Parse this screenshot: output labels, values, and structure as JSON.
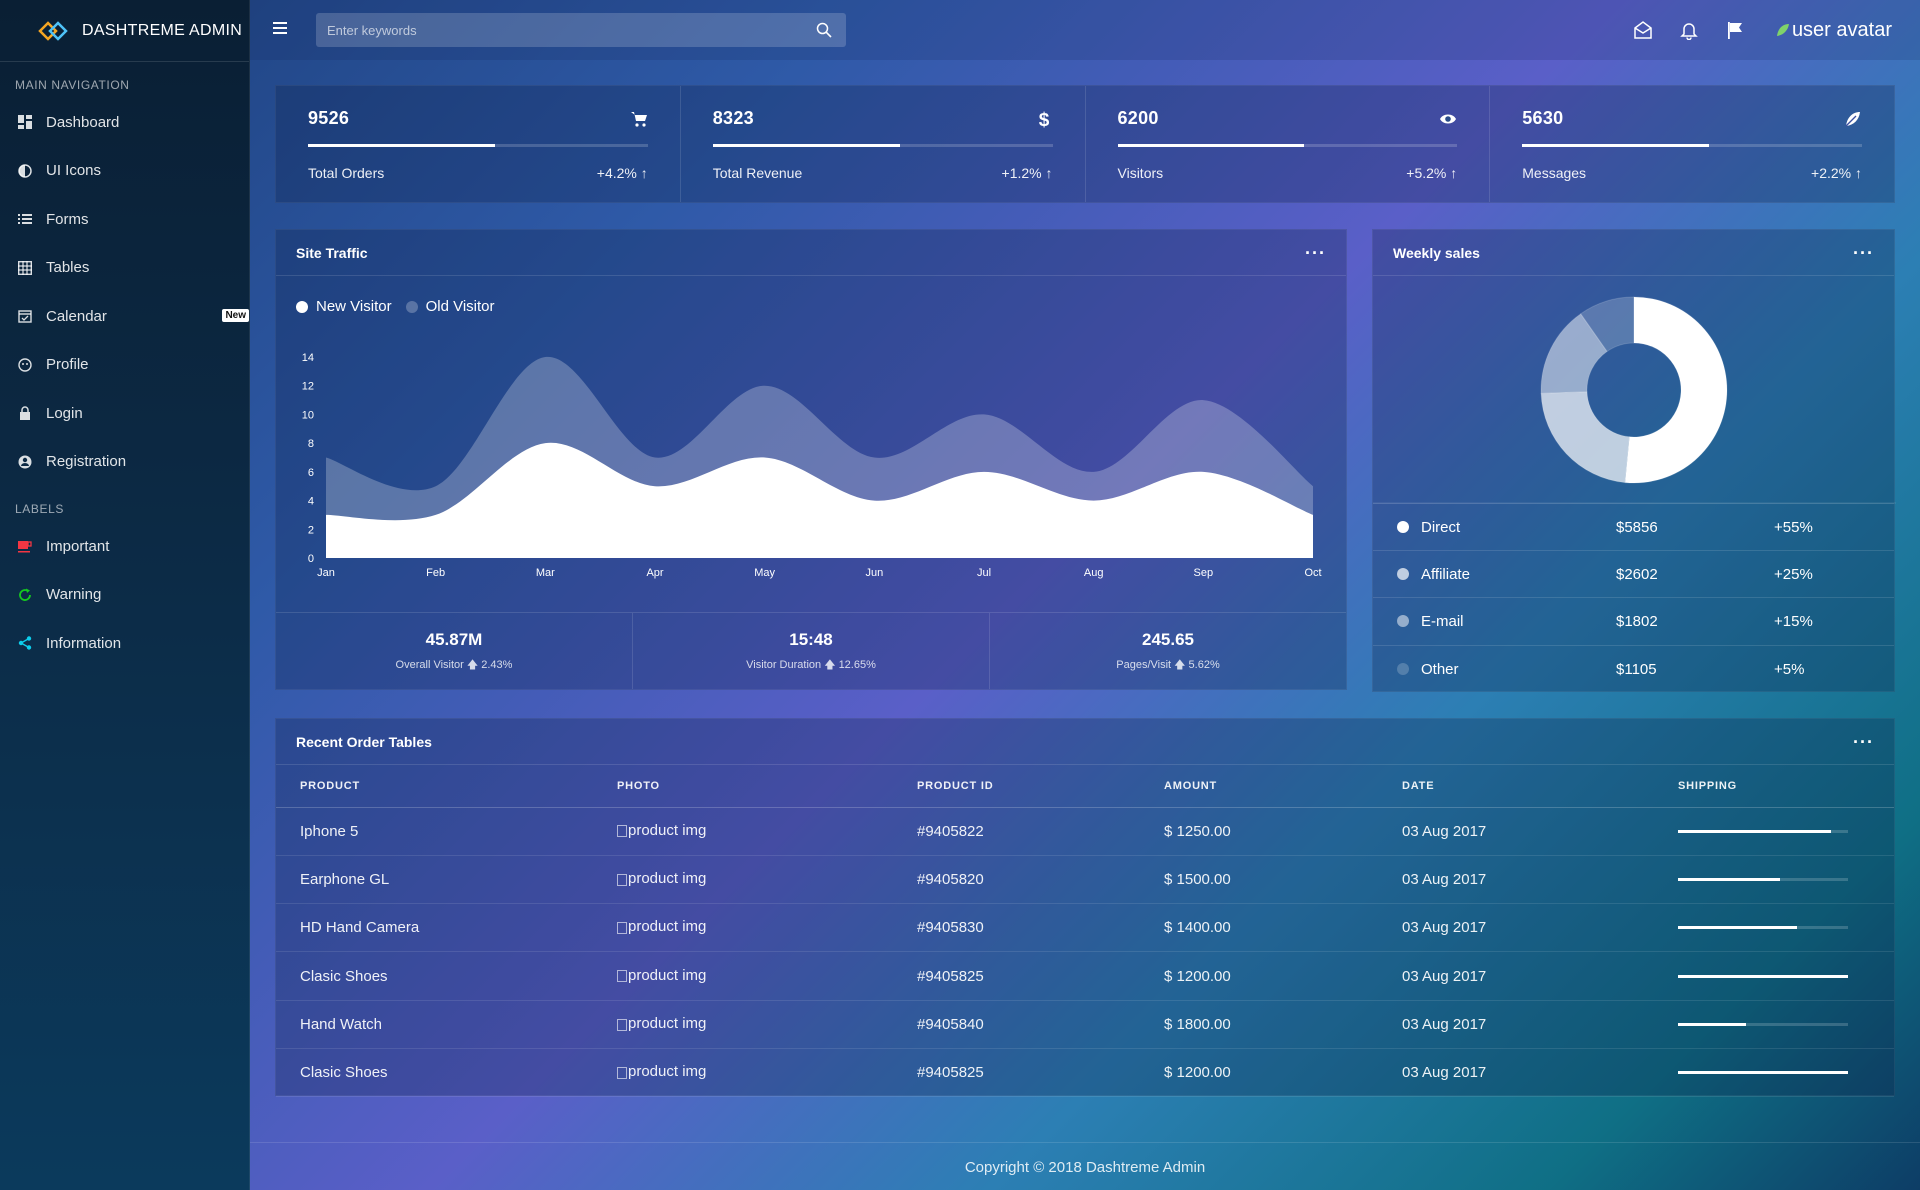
{
  "brand": {
    "name": "DASHTREME ADMIN"
  },
  "sidebar": {
    "main_header": "MAIN NAVIGATION",
    "items": [
      {
        "label": "Dashboard",
        "icon": "dashboard-icon"
      },
      {
        "label": "UI Icons",
        "icon": "contrast-icon"
      },
      {
        "label": "Forms",
        "icon": "list-icon"
      },
      {
        "label": "Tables",
        "icon": "grid-icon"
      },
      {
        "label": "Calendar",
        "icon": "calendar-icon",
        "badge": "New"
      },
      {
        "label": "Profile",
        "icon": "face-icon"
      },
      {
        "label": "Login",
        "icon": "lock-icon"
      },
      {
        "label": "Registration",
        "icon": "account-icon"
      }
    ],
    "labels_header": "LABELS",
    "labels": [
      {
        "label": "Important",
        "icon": "coffee-icon",
        "color": "#f43643"
      },
      {
        "label": "Warning",
        "icon": "refresh-icon",
        "color": "#15ca20"
      },
      {
        "label": "Information",
        "icon": "share-icon",
        "color": "#0dceec"
      }
    ]
  },
  "topbar": {
    "search_placeholder": "Enter keywords",
    "avatar_alt": "user avatar"
  },
  "stats": [
    {
      "value": "9526",
      "label": "Total Orders",
      "change": "+4.2%",
      "progress": 0.55,
      "icon": "cart-icon"
    },
    {
      "value": "8323",
      "label": "Total Revenue",
      "change": "+1.2%",
      "progress": 0.55,
      "icon": "dollar-icon"
    },
    {
      "value": "6200",
      "label": "Visitors",
      "change": "+5.2%",
      "progress": 0.55,
      "icon": "eye-icon"
    },
    {
      "value": "5630",
      "label": "Messages",
      "change": "+2.2%",
      "progress": 0.55,
      "icon": "leaf-icon"
    }
  ],
  "traffic": {
    "title": "Site Traffic",
    "legend": [
      "New Visitor",
      "Old Visitor"
    ],
    "footer": [
      {
        "value": "45.87M",
        "label": "Overall Visitor",
        "change": "2.43%"
      },
      {
        "value": "15:48",
        "label": "Visitor Duration",
        "change": "12.65%"
      },
      {
        "value": "245.65",
        "label": "Pages/Visit",
        "change": "5.62%"
      }
    ]
  },
  "chart_data": [
    {
      "type": "area",
      "title": "Site Traffic",
      "categories": [
        "Jan",
        "Feb",
        "Mar",
        "Apr",
        "May",
        "Jun",
        "Jul",
        "Aug",
        "Sep",
        "Oct"
      ],
      "ylim": [
        0,
        14
      ],
      "yticks": [
        0,
        2,
        4,
        6,
        8,
        10,
        12,
        14
      ],
      "grid": false,
      "legend": "top-left",
      "series": [
        {
          "name": "New Visitor",
          "values": [
            3,
            3,
            8,
            5,
            7,
            4,
            6,
            4,
            6,
            3
          ],
          "color": "#ffffff"
        },
        {
          "name": "Old Visitor",
          "values": [
            7,
            5,
            14,
            7,
            12,
            7,
            10,
            6,
            11,
            5
          ],
          "color": "rgba(255,255,255,0.25)"
        }
      ]
    },
    {
      "type": "pie",
      "title": "Weekly sales",
      "categories": [
        "Direct",
        "Affiliate",
        "E-mail",
        "Other"
      ],
      "values": [
        5856,
        2602,
        1802,
        1105
      ],
      "colors": [
        "#ffffff",
        "rgba(255,255,255,0.7)",
        "rgba(255,255,255,0.5)",
        "rgba(255,255,255,0.2)"
      ]
    }
  ],
  "sales": {
    "title": "Weekly sales",
    "rows": [
      {
        "name": "Direct",
        "amount": "$5856",
        "change": "+55%",
        "color": "#ffffff"
      },
      {
        "name": "Affiliate",
        "amount": "$2602",
        "change": "+25%",
        "color": "rgba(255,255,255,0.7)"
      },
      {
        "name": "E-mail",
        "amount": "$1802",
        "change": "+15%",
        "color": "rgba(255,255,255,0.5)"
      },
      {
        "name": "Other",
        "amount": "$1105",
        "change": "+5%",
        "color": "rgba(255,255,255,0.2)"
      }
    ]
  },
  "orders": {
    "title": "Recent Order Tables",
    "columns": [
      "PRODUCT",
      "PHOTO",
      "PRODUCT ID",
      "AMOUNT",
      "DATE",
      "SHIPPING"
    ],
    "rows": [
      {
        "product": "Iphone 5",
        "photo": "product img",
        "id": "#9405822",
        "amount": "$ 1250.00",
        "date": "03 Aug 2017",
        "shipping": 0.9
      },
      {
        "product": "Earphone GL",
        "photo": "product img",
        "id": "#9405820",
        "amount": "$ 1500.00",
        "date": "03 Aug 2017",
        "shipping": 0.6
      },
      {
        "product": "HD Hand Camera",
        "photo": "product img",
        "id": "#9405830",
        "amount": "$ 1400.00",
        "date": "03 Aug 2017",
        "shipping": 0.7
      },
      {
        "product": "Clasic Shoes",
        "photo": "product img",
        "id": "#9405825",
        "amount": "$ 1200.00",
        "date": "03 Aug 2017",
        "shipping": 1.0
      },
      {
        "product": "Hand Watch",
        "photo": "product img",
        "id": "#9405840",
        "amount": "$ 1800.00",
        "date": "03 Aug 2017",
        "shipping": 0.4
      },
      {
        "product": "Clasic Shoes",
        "photo": "product img",
        "id": "#9405825",
        "amount": "$ 1200.00",
        "date": "03 Aug 2017",
        "shipping": 1.0
      }
    ]
  },
  "footer": {
    "text": "Copyright © 2018 Dashtreme Admin"
  }
}
